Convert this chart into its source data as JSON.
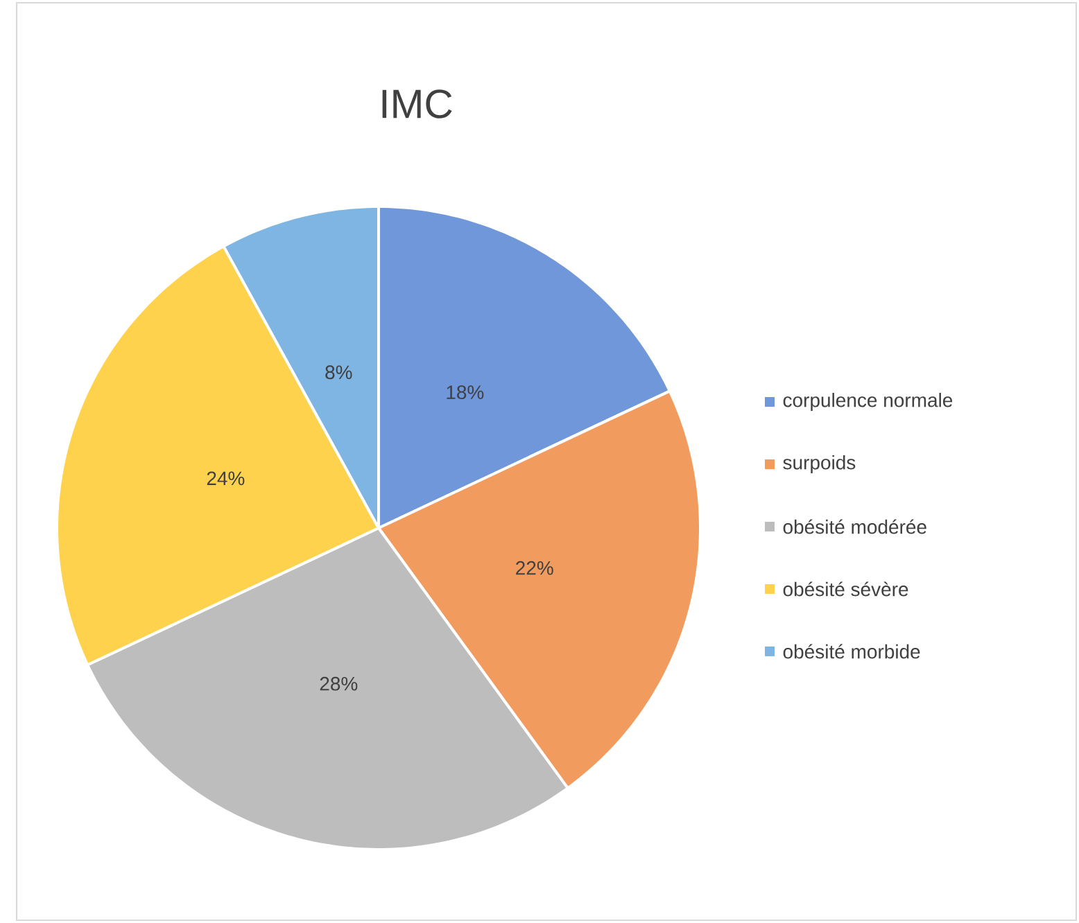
{
  "chart_data": {
    "type": "pie",
    "title": "IMC",
    "categories": [
      "corpulence normale",
      "surpoids",
      "obésité modérée",
      "obésité sévère",
      "obésité morbide"
    ],
    "values": [
      18,
      22,
      28,
      24,
      8
    ],
    "value_labels": [
      "18%",
      "22%",
      "28%",
      "24%",
      "8%"
    ],
    "colors": [
      "#7097d9",
      "#f29b5e",
      "#bdbdbd",
      "#ffd24d",
      "#7fb5e3"
    ],
    "legend": "right"
  }
}
